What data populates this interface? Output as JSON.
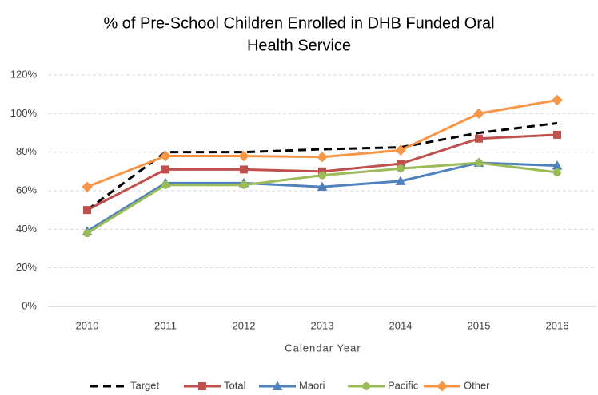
{
  "chart_data": {
    "type": "line",
    "title": [
      "% of Pre-School Children Enrolled in DHB Funded Oral",
      "Health Service"
    ],
    "x_label": "Calendar Year",
    "categories": [
      "2010",
      "2011",
      "2012",
      "2013",
      "2014",
      "2015",
      "2016"
    ],
    "series": [
      {
        "name": "Target",
        "color": "#000000",
        "dash": true,
        "marker": "none",
        "values": [
          50,
          80,
          80,
          81.5,
          82.5,
          90,
          95
        ]
      },
      {
        "name": "Total",
        "color": "#c0504d",
        "marker": "square",
        "values": [
          50,
          71,
          71,
          70,
          74,
          87,
          89
        ]
      },
      {
        "name": "Maori",
        "color": "#4f81bd",
        "marker": "triangle",
        "values": [
          39,
          64,
          64,
          62,
          65,
          74.5,
          73
        ]
      },
      {
        "name": "Pacific",
        "color": "#9bbb59",
        "marker": "circle",
        "values": [
          38,
          63,
          63,
          68,
          71.5,
          74.5,
          69.5
        ]
      },
      {
        "name": "Other",
        "color": "#f79646",
        "marker": "diamond",
        "values": [
          62,
          78,
          78,
          77.5,
          81,
          100,
          107
        ]
      }
    ],
    "ylim": [
      0,
      120
    ],
    "yticks": [
      {
        "value": 0,
        "label": "0%"
      },
      {
        "value": 20,
        "label": "20%"
      },
      {
        "value": 40,
        "label": "40%"
      },
      {
        "value": 60,
        "label": "60%"
      },
      {
        "value": 80,
        "label": "80%"
      },
      {
        "value": 100,
        "label": "100%"
      },
      {
        "value": 120,
        "label": "120%"
      }
    ],
    "grid": true,
    "legend": "bottom"
  }
}
